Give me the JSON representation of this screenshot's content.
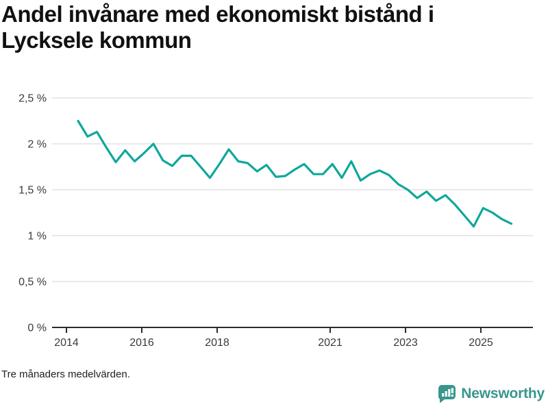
{
  "page": {
    "background": "#ffffff"
  },
  "header": {
    "title_lines": [
      "Andel invånare med ekonomiskt bistånd i",
      "Lycksele kommun"
    ]
  },
  "footnote": {
    "text": "Tre månaders medelvärden."
  },
  "branding": {
    "label": "Newsworthy",
    "icon": "newsworthy-speech-bubble-bar-chart-icon",
    "color": "#38968c"
  },
  "colors": {
    "axis": "#2b2b2b",
    "grid": "#dcdcdc",
    "tick_text": "#3a3a3a",
    "line": "#0fa79b"
  },
  "chart_data": {
    "type": "line",
    "title": "Andel invånare med ekonomiskt bistånd i Lycksele kommun",
    "xlabel": "",
    "ylabel": "",
    "unit": "percent",
    "ylim": [
      0,
      2.5
    ],
    "xlim_years": [
      2013.6,
      2026.4
    ],
    "grid": "horizontal",
    "legend": "none",
    "note": "Tre månaders medelvärden.",
    "y_ticks": [
      {
        "value": 0,
        "label": "0 %"
      },
      {
        "value": 0.5,
        "label": "0,5 %"
      },
      {
        "value": 1,
        "label": "1 %"
      },
      {
        "value": 1.5,
        "label": "1,5 %"
      },
      {
        "value": 2,
        "label": "2 %"
      },
      {
        "value": 2.5,
        "label": "2,5 %"
      }
    ],
    "x_ticks": [
      {
        "year": 2014,
        "label": "2014"
      },
      {
        "year": 2016,
        "label": "2016"
      },
      {
        "year": 2018,
        "label": "2018"
      },
      {
        "year": 2021,
        "label": "2021"
      },
      {
        "year": 2023,
        "label": "2023"
      },
      {
        "year": 2025,
        "label": "2025"
      }
    ],
    "series": [
      {
        "name": "Andel invånare med ekonomiskt bistånd",
        "color": "#0fa79b",
        "x_decimal_years": [
          2014.31,
          2014.56,
          2014.81,
          2015.06,
          2015.31,
          2015.56,
          2015.81,
          2016.06,
          2016.31,
          2016.56,
          2016.81,
          2017.06,
          2017.31,
          2017.56,
          2017.81,
          2018.06,
          2018.31,
          2018.56,
          2018.81,
          2019.06,
          2019.31,
          2019.56,
          2019.81,
          2020.06,
          2020.31,
          2020.56,
          2020.81,
          2021.06,
          2021.31,
          2021.56,
          2021.81,
          2022.06,
          2022.31,
          2022.56,
          2022.81,
          2023.06,
          2023.31,
          2023.56,
          2023.81,
          2024.06,
          2024.31,
          2024.56,
          2024.81,
          2025.06,
          2025.31,
          2025.56,
          2025.81
        ],
        "values": [
          2.25,
          2.08,
          2.13,
          1.96,
          1.8,
          1.93,
          1.81,
          1.9,
          2.0,
          1.82,
          1.76,
          1.87,
          1.87,
          1.75,
          1.63,
          1.78,
          1.94,
          1.81,
          1.79,
          1.7,
          1.77,
          1.64,
          1.65,
          1.72,
          1.78,
          1.67,
          1.67,
          1.78,
          1.63,
          1.81,
          1.6,
          1.67,
          1.71,
          1.66,
          1.56,
          1.5,
          1.41,
          1.48,
          1.38,
          1.44,
          1.34,
          1.22,
          1.1,
          1.3,
          1.25,
          1.18,
          1.13
        ]
      }
    ]
  }
}
